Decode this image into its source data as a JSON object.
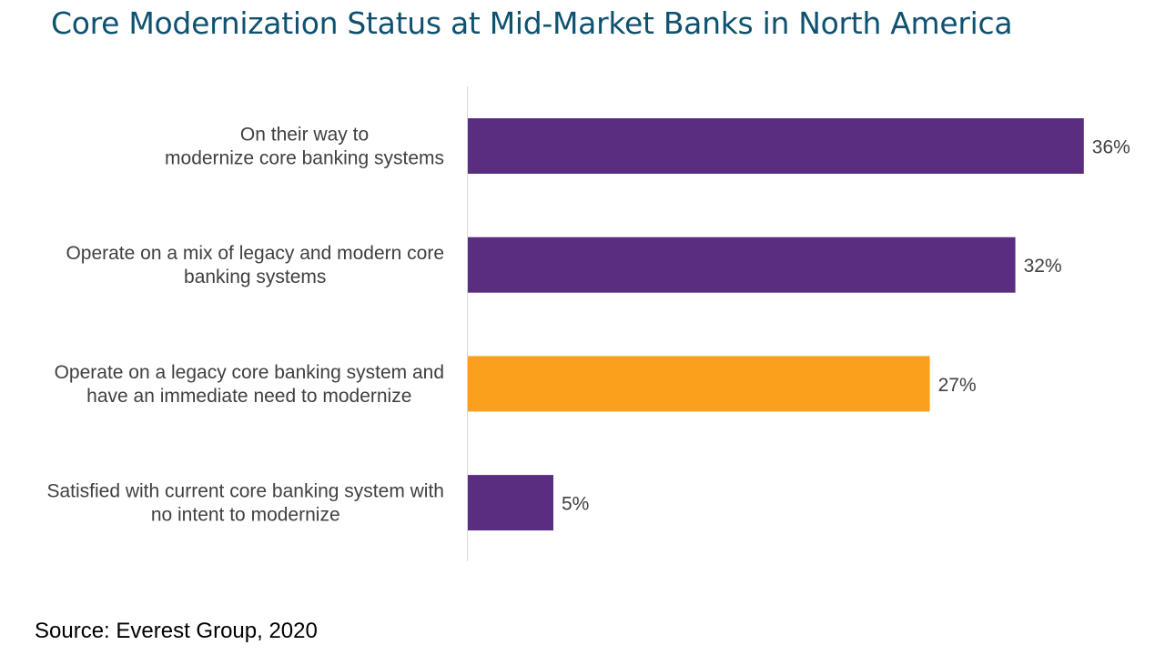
{
  "title": "Core Modernization Status at Mid-Market Banks in North America",
  "source": "Source: Everest Group, 2020",
  "colors": {
    "title": "#0f5270",
    "primary_bar": "#5b2d80",
    "highlight_bar": "#fba01d",
    "axis": "#d9d9d9",
    "label_text": "#404040"
  },
  "chart_data": {
    "type": "bar",
    "orientation": "horizontal",
    "categories": [
      [
        "On their way to",
        "modernize core banking systems"
      ],
      [
        "Operate on a mix of legacy and modern core",
        "banking systems"
      ],
      [
        "Operate on a legacy core banking system and",
        "have an immediate need to modernize"
      ],
      [
        "Satisfied with current core banking system with",
        "no intent to modernize"
      ]
    ],
    "values": [
      36,
      32,
      27,
      5
    ],
    "value_labels": [
      "36%",
      "32%",
      "27%",
      "5%"
    ],
    "highlight_index": 2,
    "unit": "%",
    "grid": false,
    "legend": "none"
  }
}
